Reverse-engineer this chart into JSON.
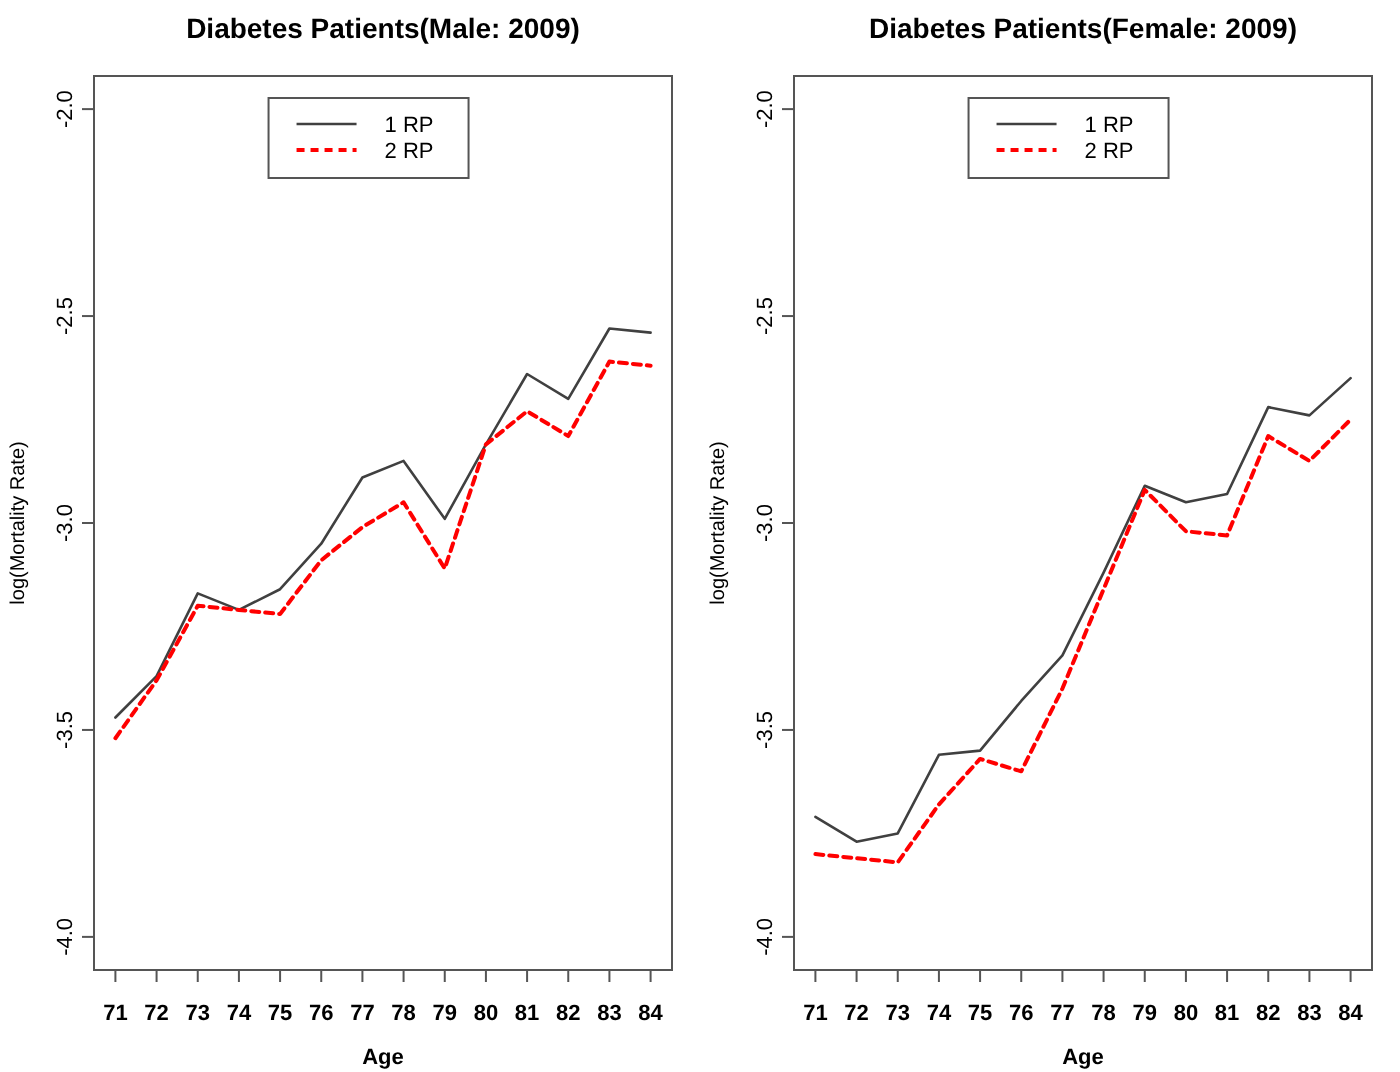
{
  "chart_data": [
    {
      "type": "line",
      "title": "Diabetes Patients(Male: 2009)",
      "xlabel": "Age",
      "ylabel": "log(Mortality Rate)",
      "x": [
        71,
        72,
        73,
        74,
        75,
        76,
        77,
        78,
        79,
        80,
        81,
        82,
        83,
        84
      ],
      "xlim": [
        70.48,
        84.52
      ],
      "xticks": [
        71,
        72,
        73,
        74,
        75,
        76,
        77,
        78,
        79,
        80,
        81,
        82,
        83,
        84
      ],
      "ylim": [
        -4.08,
        -1.92
      ],
      "yticks": [
        {
          "value": -4,
          "label": "-4.0"
        },
        {
          "value": -3.5,
          "label": "-3.5"
        },
        {
          "value": -3,
          "label": "-3.0"
        },
        {
          "value": -2.5,
          "label": "-2.5"
        },
        {
          "value": -2,
          "label": "-2.0"
        }
      ],
      "grid": false,
      "legend": "top",
      "marker": "none",
      "series": [
        {
          "name": "1 RP",
          "color": "#404040",
          "line_style": "solid",
          "values": [
            -3.47,
            -3.37,
            -3.17,
            -3.21,
            -3.16,
            -3.05,
            -2.89,
            -2.85,
            -2.99,
            -2.81,
            -2.64,
            -2.7,
            -2.53,
            -2.54
          ]
        },
        {
          "name": "2 RP",
          "color": "#ff0000",
          "line_style": "dashed",
          "values": [
            -3.52,
            -3.38,
            -3.2,
            -3.21,
            -3.22,
            -3.09,
            -3.01,
            -2.95,
            -3.11,
            -2.81,
            -2.73,
            -2.79,
            -2.61,
            -2.62
          ]
        }
      ]
    },
    {
      "type": "line",
      "title": "Diabetes Patients(Female: 2009)",
      "xlabel": "Age",
      "ylabel": "log(Mortality Rate)",
      "x": [
        71,
        72,
        73,
        74,
        75,
        76,
        77,
        78,
        79,
        80,
        81,
        82,
        83,
        84
      ],
      "xlim": [
        70.48,
        84.52
      ],
      "xticks": [
        71,
        72,
        73,
        74,
        75,
        76,
        77,
        78,
        79,
        80,
        81,
        82,
        83,
        84
      ],
      "ylim": [
        -4.08,
        -1.92
      ],
      "yticks": [
        {
          "value": -4,
          "label": "-4.0"
        },
        {
          "value": -3.5,
          "label": "-3.5"
        },
        {
          "value": -3,
          "label": "-3.0"
        },
        {
          "value": -2.5,
          "label": "-2.5"
        },
        {
          "value": -2,
          "label": "-2.0"
        }
      ],
      "grid": false,
      "legend": "top",
      "marker": "none",
      "series": [
        {
          "name": "1 RP",
          "color": "#404040",
          "line_style": "solid",
          "values": [
            -3.71,
            -3.77,
            -3.75,
            -3.56,
            -3.55,
            -3.43,
            -3.32,
            -3.12,
            -2.91,
            -2.95,
            -2.93,
            -2.72,
            -2.74,
            -2.65
          ]
        },
        {
          "name": "2 RP",
          "color": "#ff0000",
          "line_style": "dashed",
          "values": [
            -3.8,
            -3.81,
            -3.82,
            -3.68,
            -3.57,
            -3.6,
            -3.4,
            -3.16,
            -2.92,
            -3.02,
            -3.03,
            -2.79,
            -2.85,
            -2.75
          ]
        }
      ]
    }
  ]
}
